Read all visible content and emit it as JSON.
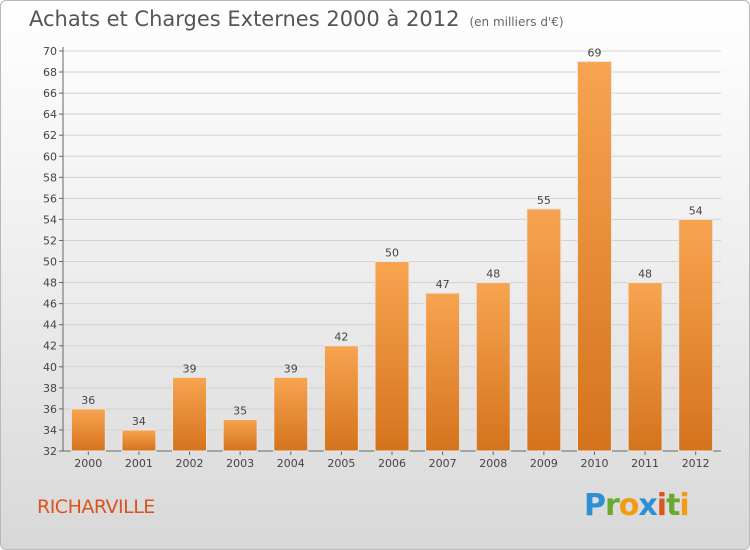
{
  "header": {
    "title": "Achats et Charges Externes 2000 à 2012",
    "subtitle": "(en milliers d'€)"
  },
  "footer": {
    "commune": "RICHARVILLE",
    "logo_letters": [
      "P",
      "r",
      "o",
      "x",
      "i",
      "t",
      "i"
    ],
    "logo_colors": [
      "#2d8fd6",
      "#6aa82f",
      "#f39c12",
      "#2d8fd6",
      "#d9541e",
      "#6aa82f",
      "#f39c12"
    ]
  },
  "chart_data": {
    "type": "bar",
    "categories": [
      "2000",
      "2001",
      "2002",
      "2003",
      "2004",
      "2005",
      "2006",
      "2007",
      "2008",
      "2009",
      "2010",
      "2011",
      "2012"
    ],
    "values": [
      36,
      34,
      39,
      35,
      39,
      42,
      50,
      47,
      48,
      55,
      69,
      48,
      54
    ],
    "ylim": [
      32,
      70
    ],
    "ytick_step": 2,
    "grid": "horizontal",
    "bar_color_top": "#f7a450",
    "bar_color_bottom": "#d5731d",
    "data_labels": true
  }
}
